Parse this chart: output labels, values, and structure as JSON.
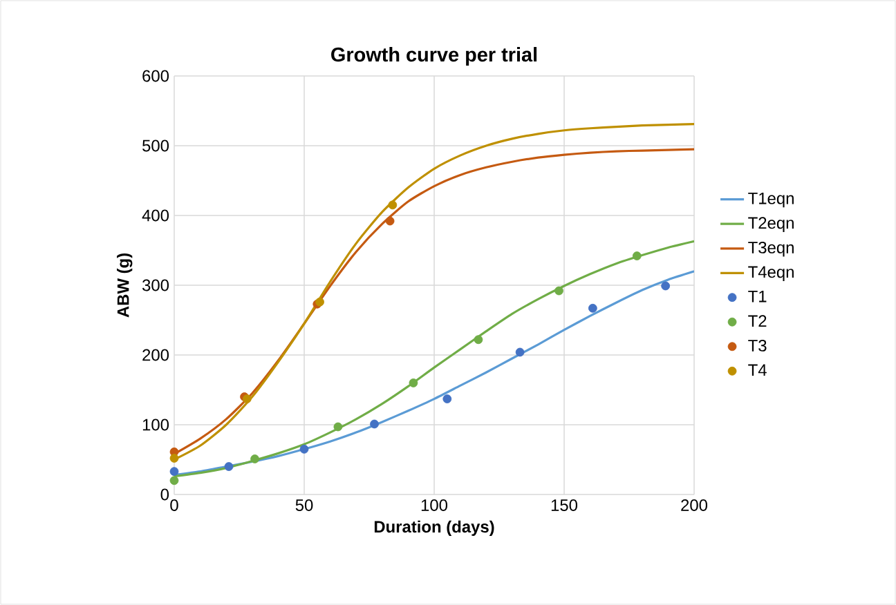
{
  "chart_data": {
    "type": "line",
    "title": "Growth curve per trial",
    "xlabel": "Duration (days)",
    "ylabel": "ABW (g)",
    "xlim": [
      0,
      200
    ],
    "xticks": [
      0,
      50,
      100,
      150,
      200
    ],
    "ylim": [
      0,
      600
    ],
    "yticks": [
      0,
      100,
      200,
      300,
      400,
      500,
      600
    ],
    "grid": true,
    "legend": "right",
    "line_style": "solid",
    "series": [
      {
        "name": "T1eqn",
        "marker": "none",
        "color": "#5b9bd5",
        "x": [
          0,
          10,
          20,
          30,
          40,
          50,
          60,
          70,
          80,
          90,
          100,
          110,
          120,
          130,
          140,
          150,
          160,
          170,
          180,
          190,
          200
        ],
        "values": [
          28,
          33,
          40,
          47,
          55,
          65,
          76,
          89,
          104,
          120,
          137,
          156,
          175,
          195,
          215,
          236,
          256,
          275,
          293,
          308,
          320
        ]
      },
      {
        "name": "T2eqn",
        "marker": "none",
        "color": "#70ad47",
        "x": [
          0,
          10,
          20,
          30,
          40,
          50,
          60,
          70,
          80,
          90,
          100,
          110,
          120,
          130,
          140,
          150,
          160,
          170,
          180,
          190,
          200
        ],
        "values": [
          26,
          31,
          38,
          48,
          59,
          72,
          89,
          108,
          130,
          155,
          182,
          208,
          234,
          259,
          280,
          299,
          316,
          331,
          343,
          354,
          363
        ]
      },
      {
        "name": "T3eqn",
        "marker": "none",
        "color": "#c55a11",
        "x": [
          0,
          10,
          20,
          30,
          40,
          50,
          60,
          70,
          80,
          90,
          100,
          110,
          120,
          130,
          140,
          150,
          160,
          170,
          180,
          190,
          200
        ],
        "values": [
          58,
          80,
          108,
          145,
          192,
          245,
          299,
          348,
          388,
          420,
          442,
          458,
          469,
          477,
          483,
          487,
          490,
          492,
          493,
          494,
          495
        ]
      },
      {
        "name": "T4eqn",
        "marker": "none",
        "color": "#bf9000",
        "x": [
          0,
          10,
          20,
          30,
          40,
          50,
          60,
          70,
          80,
          90,
          100,
          110,
          120,
          130,
          140,
          150,
          160,
          170,
          180,
          190,
          200
        ],
        "values": [
          50,
          70,
          100,
          140,
          190,
          245,
          305,
          360,
          405,
          440,
          467,
          486,
          500,
          510,
          517,
          522,
          525,
          527,
          529,
          530,
          531
        ]
      },
      {
        "name": "T1",
        "type": "scatter",
        "marker": "circle",
        "color": "#4472c4",
        "x": [
          0,
          21,
          50,
          77,
          105,
          133,
          161,
          189
        ],
        "values": [
          33,
          40,
          65,
          101,
          137,
          204,
          267,
          299
        ]
      },
      {
        "name": "T2",
        "type": "scatter",
        "marker": "circle",
        "color": "#70ad47",
        "x": [
          0,
          31,
          63,
          92,
          117,
          148,
          178
        ],
        "values": [
          20,
          51,
          97,
          160,
          222,
          292,
          342
        ]
      },
      {
        "name": "T3",
        "type": "scatter",
        "marker": "circle",
        "color": "#c55a11",
        "x": [
          0,
          27,
          55,
          83
        ],
        "values": [
          61,
          140,
          273,
          392
        ]
      },
      {
        "name": "T4",
        "type": "scatter",
        "marker": "circle",
        "color": "#bf9000",
        "x": [
          0,
          28,
          56,
          84
        ],
        "values": [
          52,
          137,
          276,
          415
        ]
      }
    ]
  }
}
